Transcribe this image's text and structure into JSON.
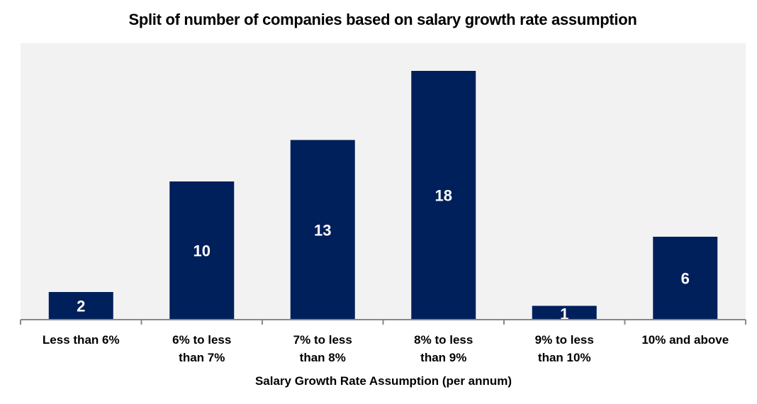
{
  "chart_data": {
    "type": "bar",
    "title": "Split of number of companies based on salary growth rate assumption",
    "xlabel": "Salary Growth Rate Assumption (per annum)",
    "ylabel": "",
    "categories": [
      [
        "Less than 6%"
      ],
      [
        "6% to less",
        "than 7%"
      ],
      [
        "7% to less",
        "than 8%"
      ],
      [
        "8% to less",
        "than 9%"
      ],
      [
        "9% to less",
        "than 10%"
      ],
      [
        "10% and above"
      ]
    ],
    "values": [
      2,
      10,
      13,
      18,
      1,
      6
    ],
    "data_labels": [
      "2",
      "10",
      "13",
      "18",
      "1",
      "6"
    ],
    "ylim": [
      0,
      18
    ],
    "grid": false,
    "legend": "none",
    "colors": {
      "bar": "#00205B",
      "plot_bg": "#F2F2F2",
      "axis": "#888888",
      "label_text": "#FFFFFF"
    }
  }
}
